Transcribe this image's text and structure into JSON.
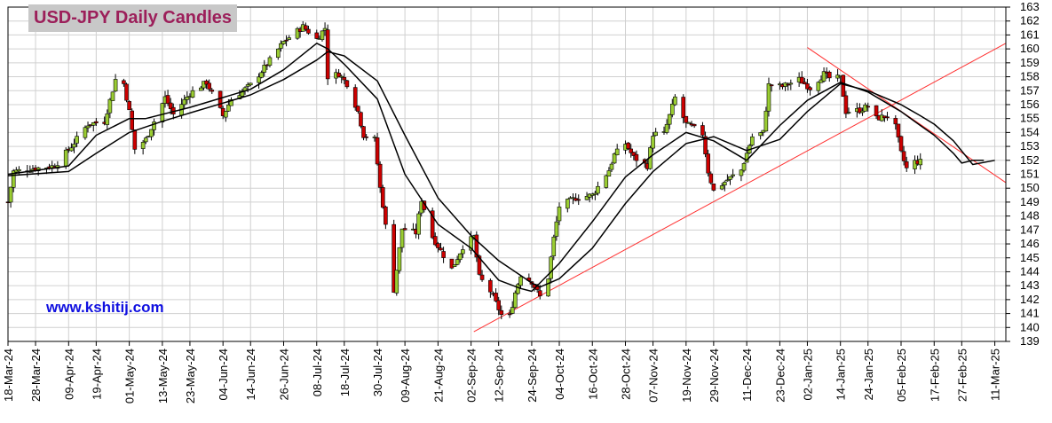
{
  "title": "USD-JPY Daily Candles",
  "website": "www.kshitij.com",
  "chart_data": {
    "type": "candlestick",
    "title": "USD-JPY Daily Candles",
    "y_ticks": [
      139,
      140,
      141,
      142,
      143,
      144,
      145,
      146,
      147,
      148,
      149,
      150,
      151,
      152,
      153,
      154,
      155,
      156,
      157,
      158,
      159,
      160,
      161,
      162,
      163
    ],
    "ylim": [
      139,
      163
    ],
    "x_tick_labels": [
      "18-Mar-24",
      "28-Mar-24",
      "09-Apr-24",
      "19-Apr-24",
      "01-May-24",
      "13-May-24",
      "23-May-24",
      "04-Jun-24",
      "14-Jun-24",
      "26-Jun-24",
      "08-Jul-24",
      "18-Jul-24",
      "30-Jul-24",
      "09-Aug-24",
      "21-Aug-24",
      "02-Sep-24",
      "12-Sep-24",
      "24-Sep-24",
      "04-Oct-24",
      "16-Oct-24",
      "28-Oct-24",
      "07-Nov-24",
      "19-Nov-24",
      "29-Nov-24",
      "11-Dec-24",
      "23-Dec-24",
      "02-Jan-25",
      "14-Jan-25",
      "24-Jan-25",
      "05-Feb-25",
      "17-Feb-25",
      "27-Feb-25",
      "11-Mar-25"
    ],
    "grid": true,
    "up_color": "#9acd32",
    "down_color": "#cc0000",
    "ma_color": "#000000",
    "trendline_color": "#ff3030",
    "close_path": [
      [
        "18-Mar-24",
        149.0
      ],
      [
        "20-Mar-24",
        151.2
      ],
      [
        "27-Mar-24",
        151.4
      ],
      [
        "04-Apr-24",
        151.6
      ],
      [
        "10-Apr-24",
        153.0
      ],
      [
        "16-Apr-24",
        154.6
      ],
      [
        "22-Apr-24",
        154.8
      ],
      [
        "26-Apr-24",
        157.8
      ],
      [
        "29-Apr-24",
        157.5
      ],
      [
        "01-May-24",
        155.5
      ],
      [
        "03-May-24",
        152.8
      ],
      [
        "07-May-24",
        153.5
      ],
      [
        "14-May-24",
        156.5
      ],
      [
        "17-May-24",
        155.3
      ],
      [
        "23-May-24",
        156.8
      ],
      [
        "29-May-24",
        157.6
      ],
      [
        "04-Jun-24",
        155.2
      ],
      [
        "07-Jun-24",
        156.4
      ],
      [
        "14-Jun-24",
        157.4
      ],
      [
        "20-Jun-24",
        158.9
      ],
      [
        "26-Jun-24",
        160.5
      ],
      [
        "03-Jul-24",
        161.6
      ],
      [
        "08-Jul-24",
        160.7
      ],
      [
        "11-Jul-24",
        161.5
      ],
      [
        "12-Jul-24",
        158.0
      ],
      [
        "16-Jul-24",
        158.2
      ],
      [
        "19-Jul-24",
        157.5
      ],
      [
        "23-Jul-24",
        155.5
      ],
      [
        "25-Jul-24",
        153.8
      ],
      [
        "29-Jul-24",
        153.5
      ],
      [
        "31-Jul-24",
        150.0
      ],
      [
        "01-Aug-24",
        148.8
      ],
      [
        "05-Aug-24",
        142.7
      ],
      [
        "08-Aug-24",
        147.1
      ],
      [
        "13-Aug-24",
        146.8
      ],
      [
        "15-Aug-24",
        149.2
      ],
      [
        "19-Aug-24",
        146.5
      ],
      [
        "22-Aug-24",
        145.5
      ],
      [
        "26-Aug-24",
        144.2
      ],
      [
        "30-Aug-24",
        145.8
      ],
      [
        "03-Sep-24",
        146.5
      ],
      [
        "05-Sep-24",
        143.6
      ],
      [
        "09-Sep-24",
        142.6
      ],
      [
        "13-Sep-24",
        140.9
      ],
      [
        "16-Sep-24",
        140.8
      ],
      [
        "18-Sep-24",
        142.5
      ],
      [
        "20-Sep-24",
        143.8
      ],
      [
        "24-Sep-24",
        143.3
      ],
      [
        "27-Sep-24",
        142.2
      ],
      [
        "30-Sep-24",
        143.6
      ],
      [
        "02-Oct-24",
        146.4
      ],
      [
        "04-Oct-24",
        148.7
      ],
      [
        "10-Oct-24",
        149.3
      ],
      [
        "16-Oct-24",
        149.5
      ],
      [
        "22-Oct-24",
        151.3
      ],
      [
        "24-Oct-24",
        152.4
      ],
      [
        "28-Oct-24",
        153.2
      ],
      [
        "31-Oct-24",
        152.2
      ],
      [
        "05-Nov-24",
        151.6
      ],
      [
        "07-Nov-24",
        153.9
      ],
      [
        "11-Nov-24",
        153.9
      ],
      [
        "15-Nov-24",
        156.5
      ],
      [
        "19-Nov-24",
        154.6
      ],
      [
        "21-Nov-24",
        154.4
      ],
      [
        "25-Nov-24",
        153.9
      ],
      [
        "27-Nov-24",
        151.2
      ],
      [
        "29-Nov-24",
        149.8
      ],
      [
        "04-Dec-24",
        150.6
      ],
      [
        "09-Dec-24",
        151.3
      ],
      [
        "13-Dec-24",
        153.7
      ],
      [
        "17-Dec-24",
        154.0
      ],
      [
        "19-Dec-24",
        157.4
      ],
      [
        "24-Dec-24",
        157.3
      ],
      [
        "30-Dec-24",
        157.8
      ],
      [
        "03-Jan-25",
        157.2
      ],
      [
        "08-Jan-25",
        158.2
      ],
      [
        "10-Jan-25",
        157.9
      ],
      [
        "14-Jan-25",
        157.9
      ],
      [
        "16-Jan-25",
        155.5
      ],
      [
        "21-Jan-25",
        155.6
      ],
      [
        "24-Jan-25",
        155.9
      ],
      [
        "27-Jan-25",
        155.0
      ],
      [
        "31-Jan-25",
        155.2
      ],
      [
        "03-Feb-25",
        154.4
      ],
      [
        "05-Feb-25",
        152.5
      ],
      [
        "07-Feb-25",
        151.4
      ],
      [
        "10-Feb-25",
        151.9
      ],
      [
        "12-Feb-25",
        151.9
      ]
    ],
    "moving_average_short": [
      [
        "18-Mar-24",
        151.0
      ],
      [
        "09-Apr-24",
        151.6
      ],
      [
        "19-Apr-24",
        153.8
      ],
      [
        "01-May-24",
        155.0
      ],
      [
        "07-May-24",
        155.0
      ],
      [
        "23-May-24",
        155.8
      ],
      [
        "14-Jun-24",
        157.1
      ],
      [
        "26-Jun-24",
        158.5
      ],
      [
        "08-Jul-24",
        160.4
      ],
      [
        "12-Jul-24",
        160.0
      ],
      [
        "18-Jul-24",
        158.9
      ],
      [
        "30-Jul-24",
        156.4
      ],
      [
        "09-Aug-24",
        151.0
      ],
      [
        "21-Aug-24",
        147.4
      ],
      [
        "02-Sep-24",
        145.7
      ],
      [
        "12-Sep-24",
        143.4
      ],
      [
        "20-Sep-24",
        142.8
      ],
      [
        "24-Sep-24",
        142.6
      ],
      [
        "04-Oct-24",
        144.6
      ],
      [
        "16-Oct-24",
        147.6
      ],
      [
        "28-Oct-24",
        150.8
      ],
      [
        "07-Nov-24",
        152.4
      ],
      [
        "19-Nov-24",
        154.0
      ],
      [
        "29-Nov-24",
        153.4
      ],
      [
        "11-Dec-24",
        152.0
      ],
      [
        "23-Dec-24",
        154.5
      ],
      [
        "02-Jan-25",
        156.3
      ],
      [
        "14-Jan-25",
        157.6
      ],
      [
        "24-Jan-25",
        156.9
      ],
      [
        "05-Feb-25",
        155.5
      ],
      [
        "12-Feb-25",
        154.5
      ],
      [
        "17-Feb-25",
        153.8
      ],
      [
        "24-Feb-25",
        152.5
      ],
      [
        "27-Feb-25",
        151.8
      ],
      [
        "03-Mar-25",
        152.0
      ],
      [
        "07-Mar-25",
        152.0
      ]
    ],
    "moving_average_long": [
      [
        "18-Mar-24",
        150.9
      ],
      [
        "09-Apr-24",
        151.2
      ],
      [
        "19-Apr-24",
        152.5
      ],
      [
        "01-May-24",
        154.0
      ],
      [
        "13-May-24",
        154.8
      ],
      [
        "23-May-24",
        155.4
      ],
      [
        "14-Jun-24",
        156.7
      ],
      [
        "26-Jun-24",
        157.8
      ],
      [
        "08-Jul-24",
        159.2
      ],
      [
        "12-Jul-24",
        159.8
      ],
      [
        "18-Jul-24",
        159.5
      ],
      [
        "30-Jul-24",
        157.7
      ],
      [
        "09-Aug-24",
        153.8
      ],
      [
        "21-Aug-24",
        149.3
      ],
      [
        "02-Sep-24",
        146.6
      ],
      [
        "12-Sep-24",
        144.8
      ],
      [
        "24-Sep-24",
        143.2
      ],
      [
        "27-Sep-24",
        142.9
      ],
      [
        "04-Oct-24",
        143.5
      ],
      [
        "16-Oct-24",
        145.7
      ],
      [
        "28-Oct-24",
        148.9
      ],
      [
        "07-Nov-24",
        151.2
      ],
      [
        "19-Nov-24",
        153.2
      ],
      [
        "29-Nov-24",
        153.7
      ],
      [
        "11-Dec-24",
        152.7
      ],
      [
        "23-Dec-24",
        153.5
      ],
      [
        "02-Jan-25",
        155.5
      ],
      [
        "14-Jan-25",
        157.5
      ],
      [
        "24-Jan-25",
        157.0
      ],
      [
        "05-Feb-25",
        156.0
      ],
      [
        "12-Feb-25",
        155.2
      ],
      [
        "17-Feb-25",
        154.6
      ],
      [
        "24-Feb-25",
        153.4
      ],
      [
        "03-Mar-25",
        151.7
      ],
      [
        "11-Mar-25",
        152.0
      ]
    ],
    "trendlines": [
      {
        "start": [
          "03-Sep-24",
          139.7
        ],
        "end": [
          "15-Mar-25",
          160.4
        ]
      },
      {
        "start": [
          "02-Jan-25",
          160.1
        ],
        "end": [
          "15-Mar-25",
          150.4
        ]
      }
    ]
  }
}
